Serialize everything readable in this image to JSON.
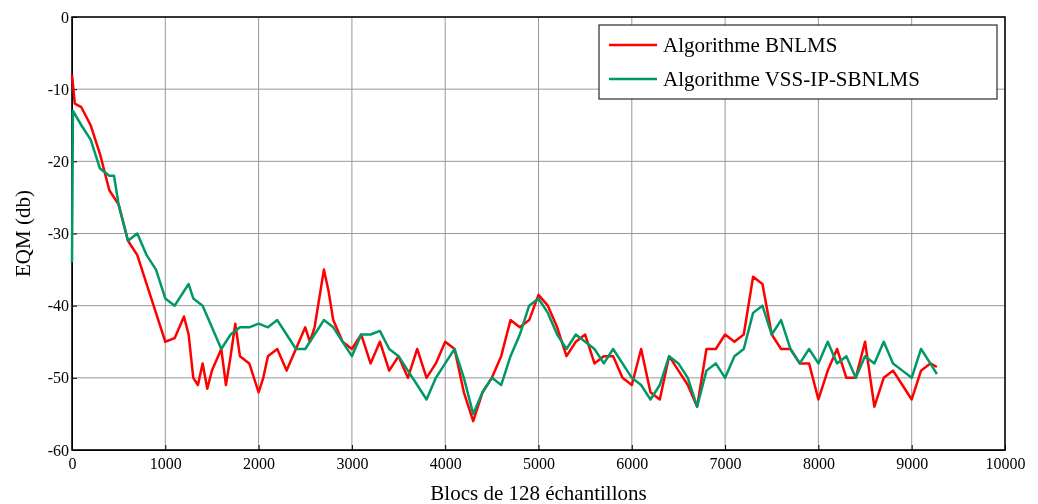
{
  "chart_data": {
    "type": "line",
    "xlabel": "Blocs de 128 échantillons",
    "ylabel": "EQM (db)",
    "xlim": [
      0,
      10000
    ],
    "xticks": [
      0,
      1000,
      2000,
      3000,
      4000,
      5000,
      6000,
      7000,
      8000,
      9000,
      10000
    ],
    "ylim": [
      -60,
      0
    ],
    "yticks": [
      -60,
      -50,
      -40,
      -30,
      -20,
      -10,
      0
    ],
    "grid": true,
    "legend": "top right",
    "line_style": "solid",
    "marker": "none",
    "series": [
      {
        "name": "Algorithme BNLMS",
        "color": "#ff0000",
        "x": [
          0,
          30,
          100,
          200,
          300,
          400,
          500,
          600,
          700,
          800,
          900,
          1000,
          1100,
          1200,
          1250,
          1300,
          1350,
          1400,
          1450,
          1500,
          1600,
          1650,
          1700,
          1750,
          1800,
          1900,
          2000,
          2050,
          2100,
          2200,
          2300,
          2400,
          2500,
          2550,
          2600,
          2650,
          2700,
          2750,
          2800,
          2900,
          3000,
          3100,
          3200,
          3300,
          3400,
          3500,
          3600,
          3700,
          3800,
          3900,
          4000,
          4100,
          4200,
          4300,
          4400,
          4500,
          4600,
          4700,
          4800,
          4900,
          5000,
          5100,
          5200,
          5300,
          5400,
          5500,
          5600,
          5700,
          5800,
          5900,
          6000,
          6100,
          6200,
          6300,
          6400,
          6500,
          6600,
          6700,
          6800,
          6900,
          7000,
          7100,
          7200,
          7300,
          7400,
          7500,
          7600,
          7700,
          7800,
          7900,
          8000,
          8100,
          8200,
          8300,
          8400,
          8500,
          8600,
          8700,
          8800,
          8900,
          9000,
          9100,
          9200,
          9270
        ],
        "values": [
          -8,
          -12,
          -12.5,
          -15,
          -19,
          -24,
          -26,
          -31,
          -33,
          -37,
          -41,
          -45,
          -44.5,
          -41.5,
          -44,
          -50,
          -51,
          -48,
          -51.5,
          -49,
          -46,
          -51,
          -47,
          -42.5,
          -47,
          -48,
          -52,
          -50,
          -47,
          -46,
          -49,
          -46,
          -43,
          -45,
          -43,
          -39,
          -35,
          -38,
          -42,
          -45,
          -46,
          -44,
          -48,
          -45,
          -49,
          -47,
          -50,
          -46,
          -50,
          -48,
          -45,
          -46,
          -52,
          -56,
          -52,
          -50,
          -47,
          -42,
          -43,
          -42,
          -38.5,
          -40,
          -43,
          -47,
          -45,
          -44,
          -48,
          -47,
          -47,
          -50,
          -51,
          -46,
          -52,
          -53,
          -47,
          -49,
          -51,
          -54,
          -46,
          -46,
          -44,
          -45,
          -44,
          -36,
          -37,
          -44,
          -46,
          -46,
          -48,
          -48,
          -53,
          -49,
          -46,
          -50,
          -50,
          -45,
          -54,
          -50,
          -49,
          -51,
          -53,
          -49,
          -48,
          -48.5
        ]
      },
      {
        "name": "Algorithme VSS-IP-SBNLMS",
        "color": "#009966",
        "x": [
          0,
          10,
          100,
          200,
          300,
          400,
          450,
          500,
          600,
          700,
          800,
          900,
          1000,
          1100,
          1200,
          1250,
          1300,
          1400,
          1500,
          1600,
          1700,
          1800,
          1900,
          2000,
          2100,
          2200,
          2300,
          2400,
          2500,
          2600,
          2700,
          2800,
          2900,
          3000,
          3100,
          3200,
          3300,
          3400,
          3500,
          3600,
          3700,
          3800,
          3900,
          4000,
          4100,
          4200,
          4300,
          4400,
          4500,
          4600,
          4700,
          4800,
          4900,
          5000,
          5100,
          5200,
          5300,
          5400,
          5500,
          5600,
          5700,
          5800,
          5900,
          6000,
          6100,
          6200,
          6300,
          6400,
          6500,
          6600,
          6700,
          6800,
          6900,
          7000,
          7100,
          7200,
          7300,
          7400,
          7500,
          7600,
          7700,
          7800,
          7900,
          8000,
          8100,
          8200,
          8300,
          8400,
          8500,
          8600,
          8700,
          8800,
          8900,
          9000,
          9100,
          9200,
          9270
        ],
        "values": [
          -34,
          -13,
          -15,
          -17,
          -21,
          -22,
          -22,
          -26,
          -31,
          -30,
          -33,
          -35,
          -39,
          -40,
          -38,
          -37,
          -39,
          -40,
          -43,
          -46,
          -44,
          -43,
          -43,
          -42.5,
          -43,
          -42,
          -44,
          -46,
          -46,
          -44,
          -42,
          -43,
          -45,
          -47,
          -44,
          -44,
          -43.5,
          -46,
          -47,
          -49,
          -51,
          -53,
          -50,
          -48,
          -46,
          -50,
          -55,
          -52,
          -50,
          -51,
          -47,
          -44,
          -40,
          -39,
          -41,
          -44,
          -46,
          -44,
          -45,
          -46,
          -48,
          -46,
          -48,
          -50,
          -51,
          -53,
          -51,
          -47,
          -48,
          -50,
          -54,
          -49,
          -48,
          -50,
          -47,
          -46,
          -41,
          -40,
          -44,
          -42,
          -46,
          -48,
          -46,
          -48,
          -45,
          -48,
          -47,
          -50,
          -47,
          -48,
          -45,
          -48,
          -49,
          -50,
          -46,
          -48,
          -49.5
        ]
      }
    ]
  }
}
